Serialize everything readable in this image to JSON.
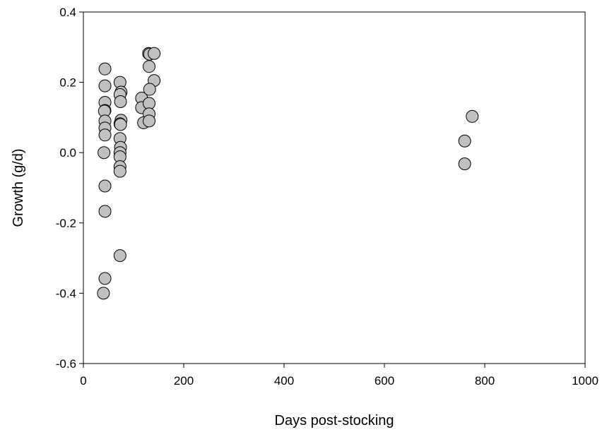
{
  "chart_data": {
    "type": "scatter",
    "xlabel": "Days post-stocking",
    "ylabel": "Growth (g/d)",
    "xlim": [
      0,
      1000
    ],
    "ylim": [
      -0.6,
      0.4
    ],
    "xticks": [
      "0",
      "200",
      "400",
      "600",
      "800",
      "1000"
    ],
    "yticks": [
      "-0.6",
      "-0.4",
      "-0.2",
      "0.0",
      "0.2",
      "0.4"
    ],
    "grid": false,
    "legend": "none",
    "marker_fill": "#c0c0c0",
    "marker_stroke": "#000000",
    "points": [
      {
        "x": 43,
        "y": 0.238
      },
      {
        "x": 43,
        "y": 0.19
      },
      {
        "x": 43,
        "y": 0.143
      },
      {
        "x": 43,
        "y": 0.12
      },
      {
        "x": 42,
        "y": 0.118
      },
      {
        "x": 43,
        "y": 0.09
      },
      {
        "x": 43,
        "y": 0.07
      },
      {
        "x": 43,
        "y": 0.05
      },
      {
        "x": 41,
        "y": 0.0
      },
      {
        "x": 43,
        "y": -0.095
      },
      {
        "x": 43,
        "y": -0.167
      },
      {
        "x": 43,
        "y": -0.358
      },
      {
        "x": 40,
        "y": -0.4
      },
      {
        "x": 73,
        "y": 0.2
      },
      {
        "x": 75,
        "y": 0.172
      },
      {
        "x": 73,
        "y": 0.165
      },
      {
        "x": 74,
        "y": 0.145
      },
      {
        "x": 75,
        "y": 0.092
      },
      {
        "x": 73,
        "y": 0.082
      },
      {
        "x": 74,
        "y": 0.08
      },
      {
        "x": 73,
        "y": 0.04
      },
      {
        "x": 74,
        "y": 0.015
      },
      {
        "x": 73,
        "y": 0.0
      },
      {
        "x": 73,
        "y": -0.012
      },
      {
        "x": 73,
        "y": -0.04
      },
      {
        "x": 73,
        "y": -0.053
      },
      {
        "x": 73,
        "y": -0.293
      },
      {
        "x": 116,
        "y": 0.155
      },
      {
        "x": 116,
        "y": 0.128
      },
      {
        "x": 120,
        "y": 0.085
      },
      {
        "x": 130,
        "y": 0.282
      },
      {
        "x": 132,
        "y": 0.28
      },
      {
        "x": 141,
        "y": 0.282
      },
      {
        "x": 131,
        "y": 0.245
      },
      {
        "x": 141,
        "y": 0.205
      },
      {
        "x": 132,
        "y": 0.18
      },
      {
        "x": 131,
        "y": 0.14
      },
      {
        "x": 131,
        "y": 0.11
      },
      {
        "x": 131,
        "y": 0.09
      },
      {
        "x": 760,
        "y": 0.033
      },
      {
        "x": 760,
        "y": -0.032
      },
      {
        "x": 775,
        "y": 0.103
      }
    ]
  }
}
